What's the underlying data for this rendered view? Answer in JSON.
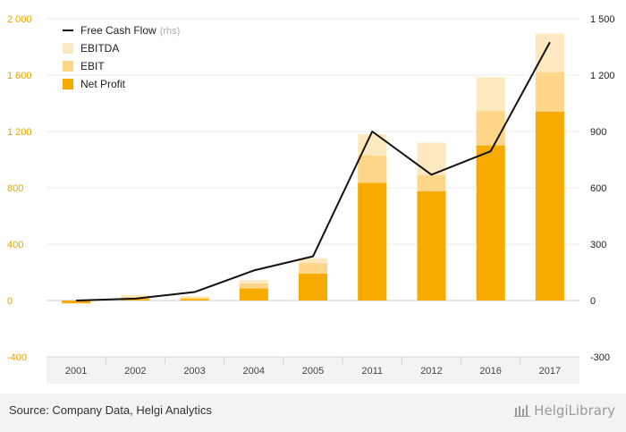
{
  "chart_data": {
    "type": "bar",
    "stacked_overlap": true,
    "categories": [
      "2001",
      "2002",
      "2003",
      "2004",
      "2005",
      "2011",
      "2012",
      "2016",
      "2017"
    ],
    "series": [
      {
        "name": "EBITDA",
        "axis": "left",
        "color": "#fde9bf",
        "values": [
          -5,
          40,
          30,
          145,
          300,
          1180,
          1120,
          1585,
          1895
        ]
      },
      {
        "name": "EBIT",
        "axis": "left",
        "color": "#fdd68a",
        "values": [
          -10,
          25,
          20,
          120,
          265,
          1030,
          890,
          1345,
          1620
        ]
      },
      {
        "name": "Net Profit",
        "axis": "left",
        "color": "#f7ab00",
        "values": [
          -20,
          12,
          10,
          85,
          190,
          835,
          775,
          1100,
          1340
        ]
      },
      {
        "name": "Free Cash Flow",
        "axis": "right",
        "type": "line",
        "color": "#111111",
        "values": [
          0,
          10,
          45,
          160,
          235,
          900,
          670,
          795,
          1375
        ]
      }
    ],
    "left_axis": {
      "min": -400,
      "max": 2000,
      "ticks": [
        -400,
        0,
        400,
        800,
        1200,
        1600,
        2000
      ],
      "tick_labels": [
        "-400",
        "0",
        "400",
        "800",
        "1 200",
        "1 600",
        "2 000"
      ]
    },
    "right_axis": {
      "min": -300,
      "max": 1500,
      "ticks": [
        -300,
        0,
        300,
        600,
        900,
        1200,
        1500
      ],
      "tick_labels": [
        "-300",
        "0",
        "300",
        "600",
        "900",
        "1 200",
        "1 500"
      ]
    },
    "legend": {
      "placement": "top-left",
      "items": [
        {
          "label": "Free Cash Flow",
          "note": "(rhs)",
          "kind": "line",
          "color": "#111111"
        },
        {
          "label": "EBITDA",
          "note": "",
          "kind": "box",
          "color": "#fde9bf"
        },
        {
          "label": "EBIT",
          "note": "",
          "kind": "box",
          "color": "#fdd68a"
        },
        {
          "label": "Net Profit",
          "note": "",
          "kind": "box",
          "color": "#f7ab00"
        }
      ]
    },
    "grid": true
  },
  "footer": {
    "source": "Source: Company Data, Helgi Analytics",
    "brand": "HelgiLibrary"
  }
}
